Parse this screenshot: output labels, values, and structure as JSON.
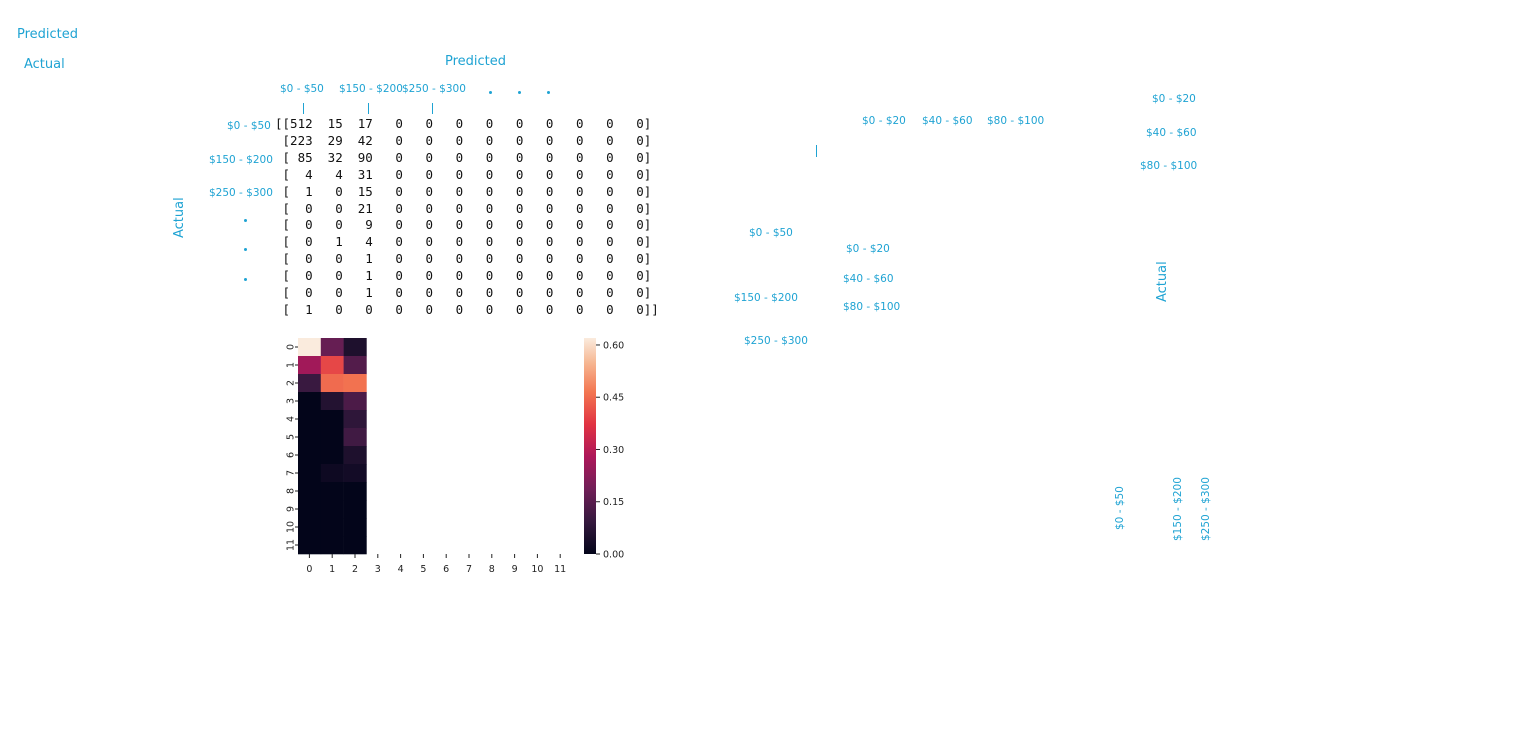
{
  "labels": {
    "predicted": "Predicted",
    "actual": "Actual",
    "r50": "$0 - $50",
    "r200": "$150 - $200",
    "r300": "$250 - $300",
    "r20": "$0 - $20",
    "r60": "$40 - $60",
    "r100": "$80 - $100"
  },
  "matrix_rows": [
    "[[512  15  17   0   0   0   0   0   0   0   0   0]",
    " [223  29  42   0   0   0   0   0   0   0   0   0]",
    " [ 85  32  90   0   0   0   0   0   0   0   0   0]",
    " [  4   4  31   0   0   0   0   0   0   0   0   0]",
    " [  1   0  15   0   0   0   0   0   0   0   0   0]",
    " [  0   0  21   0   0   0   0   0   0   0   0   0]",
    " [  0   0   9   0   0   0   0   0   0   0   0   0]",
    " [  0   1   4   0   0   0   0   0   0   0   0   0]",
    " [  0   0   1   0   0   0   0   0   0   0   0   0]",
    " [  0   0   1   0   0   0   0   0   0   0   0   0]",
    " [  0   0   1   0   0   0   0   0   0   0   0   0]",
    " [  1   0   0   0   0   0   0   0   0   0   0   0]]"
  ],
  "chart_data": {
    "type": "heatmap",
    "x_categories": [
      "0",
      "1",
      "2",
      "3",
      "4",
      "5",
      "6",
      "7",
      "8",
      "9",
      "10",
      "11"
    ],
    "y_categories": [
      "0",
      "1",
      "2",
      "3",
      "4",
      "5",
      "6",
      "7",
      "8",
      "9",
      "10",
      "11"
    ],
    "values": [
      [
        0.62,
        0.17,
        0.05
      ],
      [
        0.26,
        0.4,
        0.14
      ],
      [
        0.1,
        0.45,
        0.46
      ],
      [
        0.0,
        0.06,
        0.13
      ],
      [
        0.0,
        0.0,
        0.08
      ],
      [
        0.0,
        0.0,
        0.11
      ],
      [
        0.0,
        0.0,
        0.05
      ],
      [
        0.0,
        0.02,
        0.03
      ],
      [
        0.0,
        0.0,
        0.0
      ],
      [
        0.0,
        0.0,
        0.0
      ],
      [
        0.0,
        0.0,
        0.0
      ],
      [
        0.0,
        0.0,
        0.0
      ]
    ],
    "colorbar_ticks": [
      "0.00",
      "0.15",
      "0.30",
      "0.45",
      "0.60"
    ],
    "vmin": 0,
    "vmax": 0.62,
    "colormap": "rocket"
  }
}
